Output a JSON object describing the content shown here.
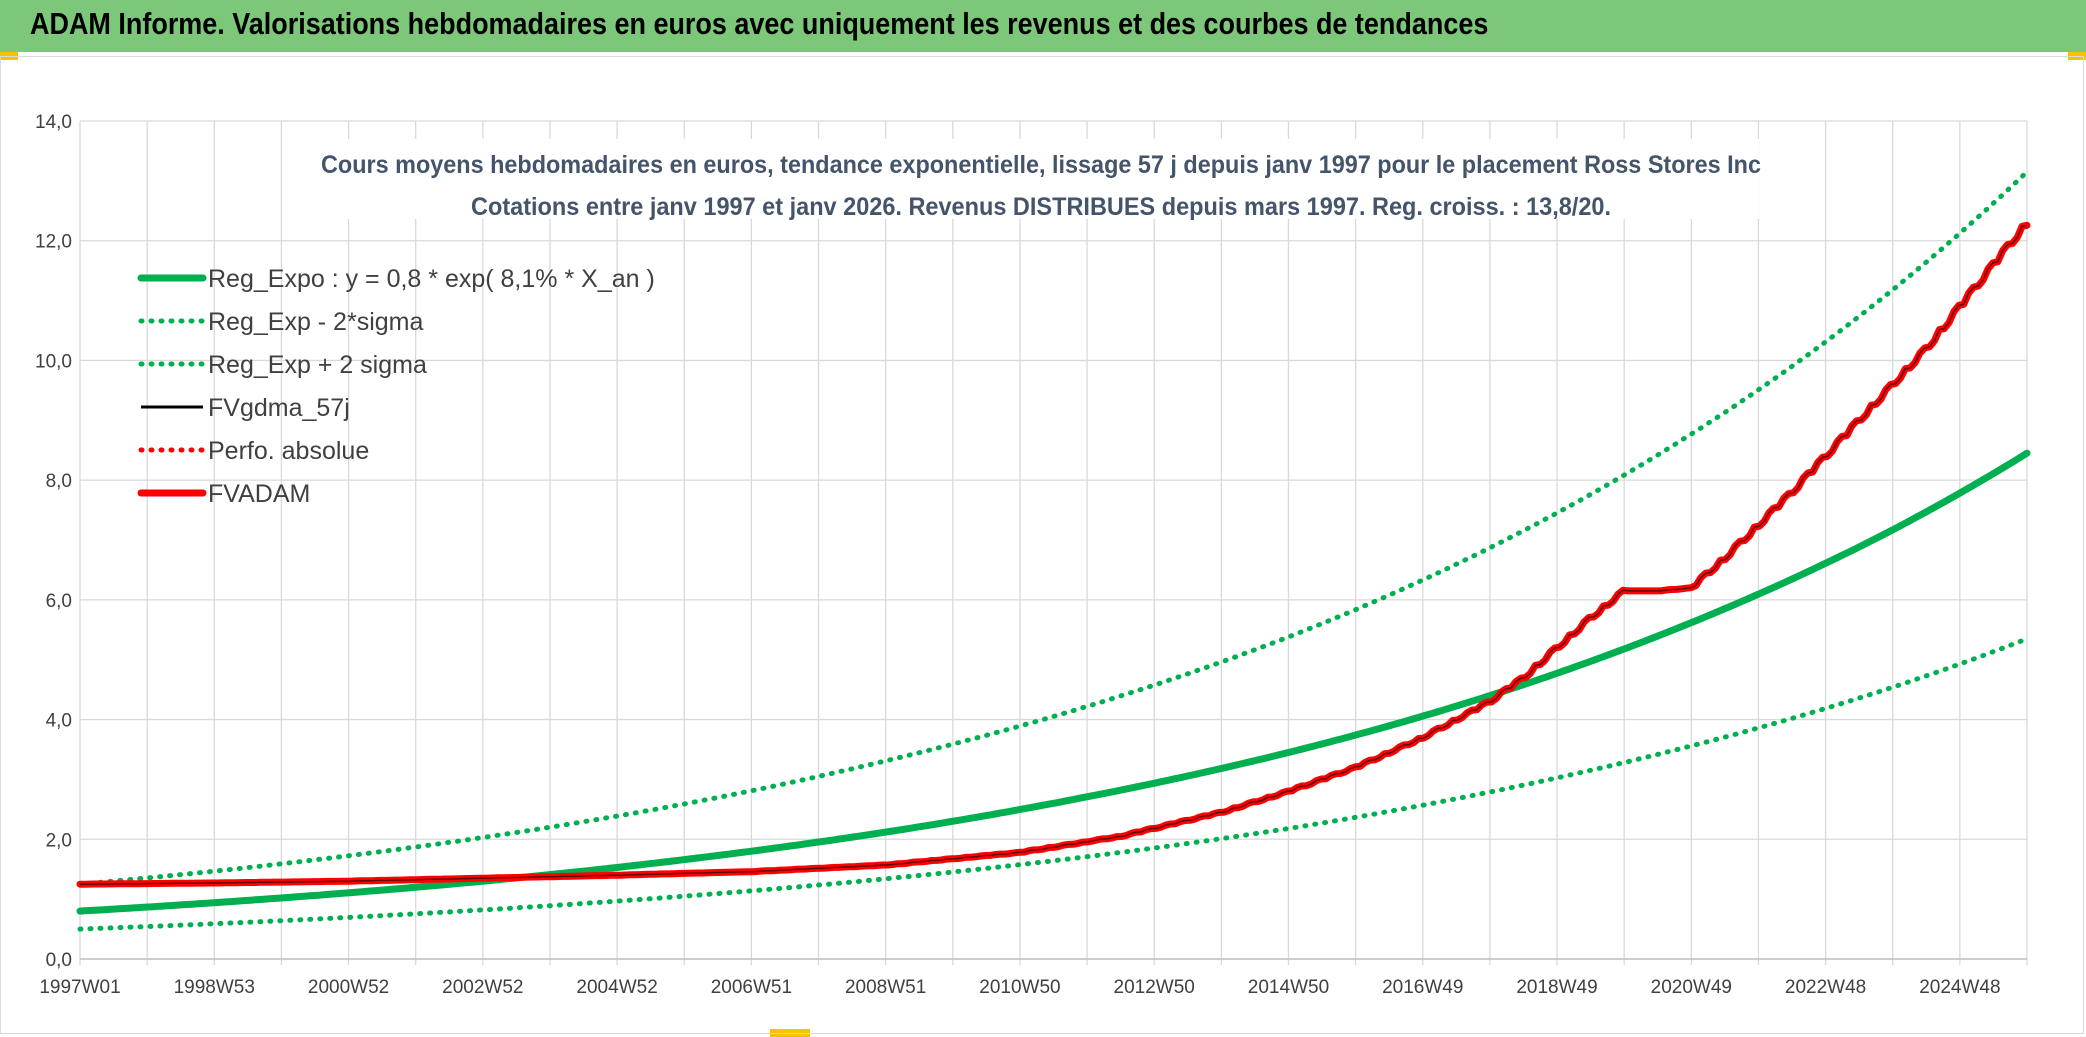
{
  "header": {
    "title": "ADAM Informe. Valorisations hebdomadaires en euros avec uniquement les revenus et des courbes de tendances"
  },
  "colors": {
    "header_bg": "#7dc77b",
    "green": "#00b050",
    "red": "#ff0000",
    "black": "#000000",
    "grid": "#d9d9d9",
    "title": "#44546a"
  },
  "chart_data": {
    "type": "line",
    "title": "Cours moyens hebdomadaires en euros, tendance exponentielle, lissage 57 j depuis janv 1997 pour le placement Ross Stores Inc",
    "subtitle": "Cotations entre janv 1997 et janv 2026. Revenus DISTRIBUES depuis mars 1997. Reg. croiss. : 13,8/20.",
    "xlabel": "",
    "ylabel": "",
    "ylim": [
      0,
      14
    ],
    "xlim": [
      1997.0,
      2026.0
    ],
    "y_ticks": [
      "0,0",
      "2,0",
      "4,0",
      "6,0",
      "8,0",
      "10,0",
      "12,0",
      "14,0"
    ],
    "x_ticks": [
      {
        "label": "1997W01",
        "x": 1997.0
      },
      {
        "label": "1998W53",
        "x": 1999.0
      },
      {
        "label": "2000W52",
        "x": 2001.0
      },
      {
        "label": "2002W52",
        "x": 2003.0
      },
      {
        "label": "2004W52",
        "x": 2005.0
      },
      {
        "label": "2006W51",
        "x": 2007.0
      },
      {
        "label": "2008W51",
        "x": 2009.0
      },
      {
        "label": "2010W50",
        "x": 2011.0
      },
      {
        "label": "2012W50",
        "x": 2013.0
      },
      {
        "label": "2014W50",
        "x": 2015.0
      },
      {
        "label": "2016W49",
        "x": 2017.0
      },
      {
        "label": "2018W49",
        "x": 2019.0
      },
      {
        "label": "2020W49",
        "x": 2021.0
      },
      {
        "label": "2022W48",
        "x": 2023.0
      },
      {
        "label": "2024W48",
        "x": 2025.0
      }
    ],
    "grid": true,
    "legend_position": "top-left",
    "series": [
      {
        "name": "Reg_Expo : y = 0,8 * exp( 8,1% *  X_an )",
        "style": "solid",
        "color": "#00b050",
        "x": [
          1997.0,
          2000.0,
          2003.0,
          2006.0,
          2009.0,
          2012.0,
          2015.0,
          2018.0,
          2021.0,
          2024.0,
          2026.0
        ],
        "values": [
          0.8,
          1.02,
          1.3,
          1.66,
          2.12,
          2.71,
          3.45,
          4.4,
          5.62,
          7.17,
          8.45
        ]
      },
      {
        "name": "Reg_Exp - 2*sigma",
        "style": "dotted",
        "color": "#00b050",
        "x": [
          1997.0,
          2000.0,
          2003.0,
          2006.0,
          2009.0,
          2012.0,
          2015.0,
          2018.0,
          2021.0,
          2024.0,
          2026.0
        ],
        "values": [
          0.5,
          0.64,
          0.82,
          1.05,
          1.34,
          1.71,
          2.18,
          2.79,
          3.56,
          4.54,
          5.35
        ]
      },
      {
        "name": "Reg_Exp + 2 sigma",
        "style": "dotted",
        "color": "#00b050",
        "x": [
          1997.0,
          2000.0,
          2003.0,
          2006.0,
          2009.0,
          2012.0,
          2015.0,
          2018.0,
          2021.0,
          2024.0,
          2026.0
        ],
        "values": [
          1.25,
          1.59,
          2.03,
          2.59,
          3.31,
          4.22,
          5.38,
          6.87,
          8.77,
          11.18,
          13.15
        ]
      },
      {
        "name": "FVgdma_57j",
        "style": "solid-thin",
        "color": "#000000",
        "x": [
          1997.0,
          1999.0,
          2001.0,
          2003.0,
          2005.0,
          2007.0,
          2009.0,
          2011.0,
          2012.5,
          2014.0,
          2015.0,
          2016.0,
          2017.0,
          2018.0,
          2018.5,
          2019.0,
          2019.5,
          2020.0,
          2020.5,
          2021.0,
          2021.5,
          2022.0,
          2022.5,
          2023.0,
          2023.5,
          2024.0,
          2024.5,
          2025.0,
          2025.5,
          2026.0
        ],
        "values": [
          1.25,
          1.27,
          1.3,
          1.35,
          1.4,
          1.46,
          1.57,
          1.78,
          2.05,
          2.45,
          2.8,
          3.2,
          3.7,
          4.3,
          4.7,
          5.2,
          5.7,
          6.15,
          6.15,
          6.2,
          6.7,
          7.25,
          7.8,
          8.4,
          9.0,
          9.6,
          10.2,
          10.9,
          11.6,
          12.3
        ]
      },
      {
        "name": "Perfo. absolue",
        "style": "dotted",
        "color": "#ff0000",
        "x": [
          1997.0,
          1999.0,
          2001.0,
          2003.0,
          2005.0,
          2007.0,
          2009.0,
          2011.0,
          2012.5,
          2014.0,
          2015.0,
          2016.0,
          2017.0,
          2018.0,
          2018.5,
          2019.0,
          2019.5,
          2020.0,
          2020.5,
          2021.0,
          2021.5,
          2022.0,
          2022.5,
          2023.0,
          2023.5,
          2024.0,
          2024.5,
          2025.0,
          2025.5,
          2026.0
        ],
        "values": [
          1.25,
          1.27,
          1.3,
          1.35,
          1.4,
          1.46,
          1.57,
          1.78,
          2.05,
          2.45,
          2.8,
          3.2,
          3.7,
          4.3,
          4.7,
          5.2,
          5.7,
          6.15,
          6.15,
          6.2,
          6.7,
          7.25,
          7.8,
          8.4,
          9.0,
          9.6,
          10.2,
          10.9,
          11.6,
          12.3
        ]
      },
      {
        "name": "FVADAM",
        "style": "solid",
        "color": "#ff0000",
        "x": [
          1997.0,
          1999.0,
          2001.0,
          2003.0,
          2005.0,
          2007.0,
          2009.0,
          2011.0,
          2012.5,
          2014.0,
          2015.0,
          2016.0,
          2017.0,
          2018.0,
          2018.5,
          2019.0,
          2019.5,
          2020.0,
          2020.5,
          2021.0,
          2021.5,
          2022.0,
          2022.5,
          2023.0,
          2023.5,
          2024.0,
          2024.5,
          2025.0,
          2025.5,
          2026.0
        ],
        "values": [
          1.25,
          1.27,
          1.3,
          1.35,
          1.4,
          1.46,
          1.57,
          1.78,
          2.05,
          2.45,
          2.8,
          3.2,
          3.7,
          4.3,
          4.7,
          5.2,
          5.7,
          6.15,
          6.15,
          6.2,
          6.7,
          7.25,
          7.8,
          8.4,
          9.0,
          9.6,
          10.2,
          10.9,
          11.6,
          12.3
        ]
      }
    ]
  }
}
